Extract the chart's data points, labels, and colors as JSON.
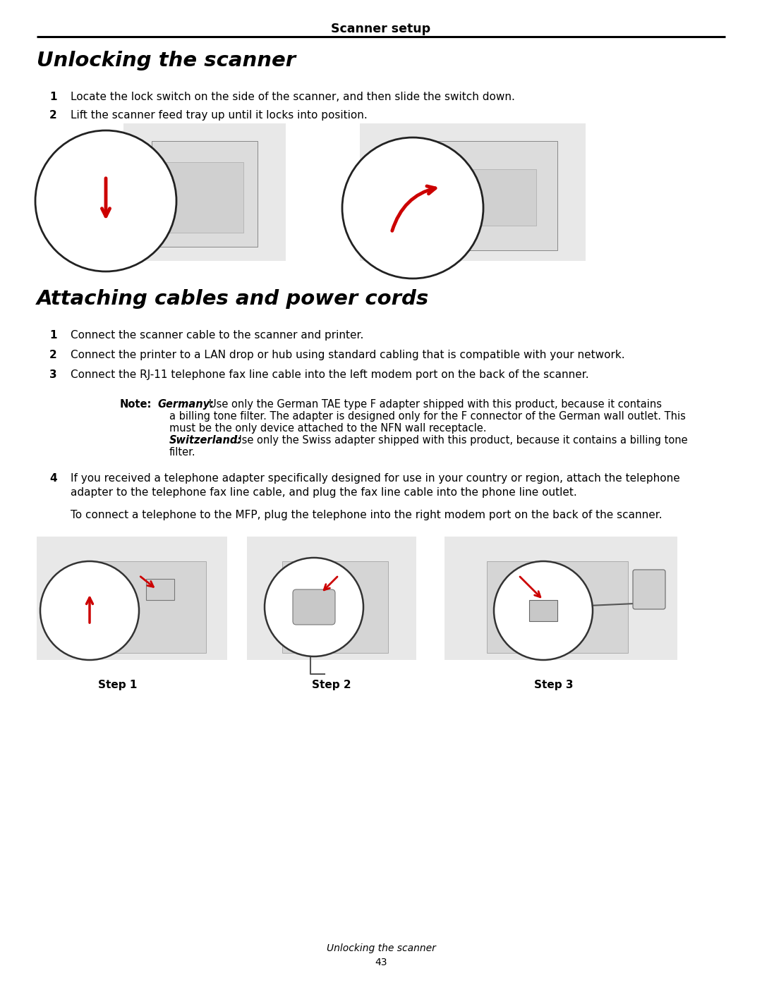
{
  "page_title": "Scanner setup",
  "section1_title": "Unlocking the scanner",
  "section1_step1": "Locate the lock switch on the side of the scanner, and then slide the switch down.",
  "section1_step2": "Lift the scanner feed tray up until it locks into position.",
  "section2_title": "Attaching cables and power cords",
  "section2_step1": "Connect the scanner cable to the scanner and printer.",
  "section2_step2": "Connect the printer to a LAN drop or hub using standard cabling that is compatible with your network.",
  "section2_step3": "Connect the RJ-11 telephone fax line cable into the left modem port on the back of the scanner.",
  "note_text1": "Note:  ",
  "note_germany": "Germany:",
  "note_germany_body": " Use only the German TAE type F adapter shipped with this product, because it contains",
  "note_line2": "a billing tone filter. The adapter is designed only for the F connector of the German wall outlet. This",
  "note_line3": "must be the only device attached to the NFN wall receptacle.",
  "note_switzerland": "Switzerland:",
  "note_switzerland_body": " Use only the Swiss adapter shipped with this product, because it contains a billing tone",
  "note_line5": "filter.",
  "step4_line1": "If you received a telephone adapter specifically designed for use in your country or region, attach the telephone",
  "step4_line2": "adapter to the telephone fax line cable, and plug the fax line cable into the phone line outlet.",
  "step4_extra": "To connect a telephone to the MFP, plug the telephone into the right modem port on the back of the scanner.",
  "step_labels": [
    "Step 1",
    "Step 2",
    "Step 3"
  ],
  "footer_text": "Unlocking the scanner",
  "footer_page": "43",
  "bg_color": "#ffffff",
  "text_color": "#000000",
  "line_color": "#000000",
  "gray_img": "#cccccc",
  "red_arrow": "#cc0000"
}
